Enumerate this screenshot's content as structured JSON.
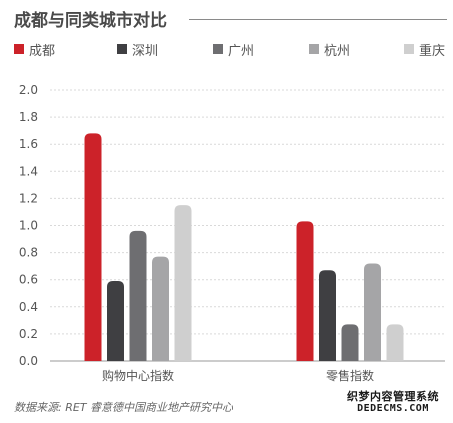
{
  "header": {
    "title": "成都与同类城市对比"
  },
  "legend": [
    {
      "label": "成都",
      "color": "#cc2229"
    },
    {
      "label": "深圳",
      "color": "#3f3f42"
    },
    {
      "label": "广州",
      "color": "#6e6e71"
    },
    {
      "label": "杭州",
      "color": "#a5a5a7"
    },
    {
      "label": "重庆",
      "color": "#cfcfcf"
    }
  ],
  "chart_data": {
    "type": "bar",
    "categories": [
      "购物中心指数",
      "零售指数"
    ],
    "series": [
      {
        "name": "成都",
        "values": [
          1.68,
          1.03
        ],
        "color": "#cc2229"
      },
      {
        "name": "深圳",
        "values": [
          0.59,
          0.67
        ],
        "color": "#3f3f42"
      },
      {
        "name": "广州",
        "values": [
          0.96,
          0.27
        ],
        "color": "#6e6e71"
      },
      {
        "name": "杭州",
        "values": [
          0.77,
          0.72
        ],
        "color": "#a5a5a7"
      },
      {
        "name": "重庆",
        "values": [
          1.15,
          0.27
        ],
        "color": "#cfcfcf"
      }
    ],
    "ylim": [
      0,
      2.0
    ],
    "yticks": [
      "0.0",
      "0.2",
      "0.4",
      "0.6",
      "0.8",
      "1.0",
      "1.2",
      "1.4",
      "1.6",
      "1.8",
      "2.0"
    ],
    "grid": true,
    "legend_position": "top-left",
    "gridline_color": "#d9d9d9",
    "axis_color": "#9a9a9a"
  },
  "footer": {
    "source": "数据来源: RET 睿意德中国商业地产研究中心"
  },
  "watermark": {
    "line1": "织梦内容管理系统",
    "line2": "DEDECMS.COM"
  }
}
